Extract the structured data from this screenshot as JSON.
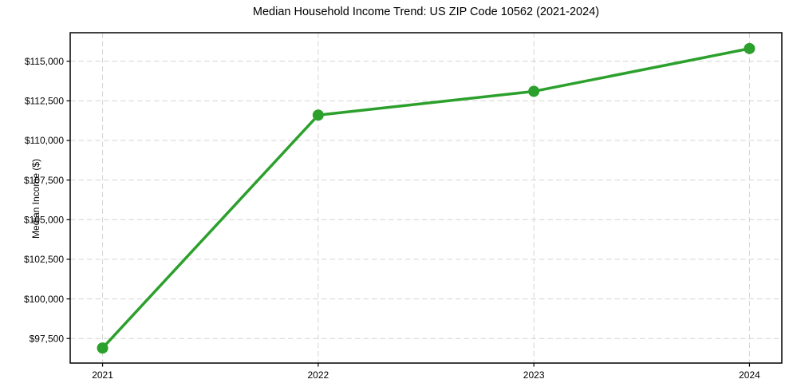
{
  "chart_data": {
    "type": "line",
    "title": "Median Household Income Trend: US ZIP Code 10562 (2021-2024)",
    "xlabel": "",
    "ylabel": "Median Income ($)",
    "categories": [
      "2021",
      "2022",
      "2023",
      "2024"
    ],
    "x": [
      2021,
      2022,
      2023,
      2024
    ],
    "series": [
      {
        "name": "Median Household Income",
        "values": [
          96900,
          111600,
          113100,
          115800
        ]
      }
    ],
    "y_ticks": [
      97500,
      100000,
      102500,
      105000,
      107500,
      110000,
      112500,
      115000
    ],
    "y_tick_labels": [
      "$97,500",
      "$100,000",
      "$102,500",
      "$105,000",
      "$107,500",
      "$110,000",
      "$112,500",
      "$115,000"
    ],
    "x_tick_labels": [
      "2021",
      "2022",
      "2023",
      "2024"
    ],
    "xlim": [
      2020.85,
      2024.15
    ],
    "ylim": [
      95950,
      116800
    ],
    "grid": true,
    "grid_style": "dashed",
    "legend_position": "none",
    "line_color": "#2ca02c",
    "marker": "circle"
  },
  "style": {
    "background_color": "#ffffff",
    "grid_color": "#d4d4d4",
    "axis_border_color": "#000000",
    "tick_color": "#000000",
    "text_color": "#000000"
  }
}
